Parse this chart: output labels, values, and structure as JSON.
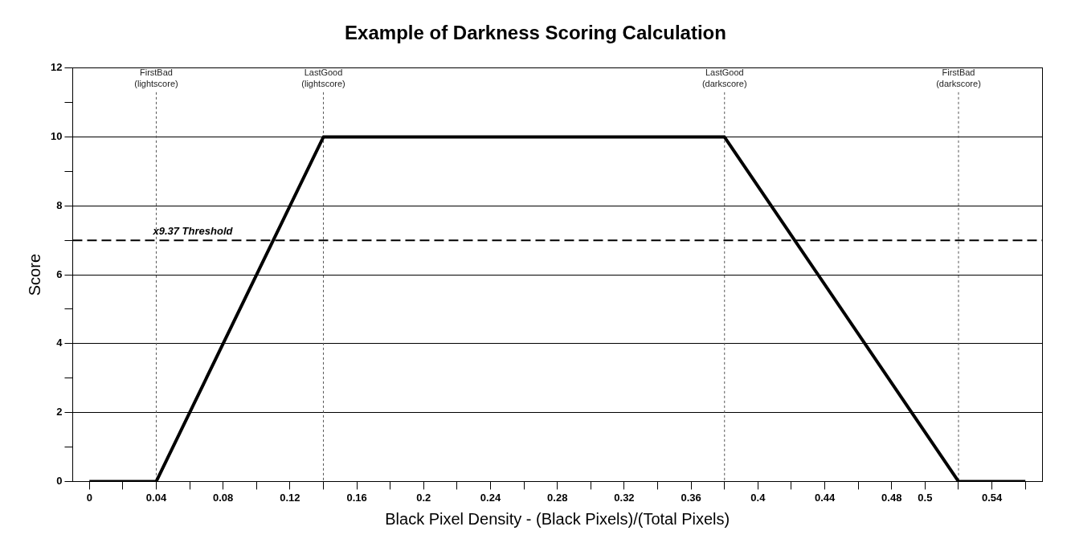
{
  "chart_data": {
    "type": "line",
    "title": "Example of Darkness Scoring Calculation",
    "xlabel": "Black Pixel Density - (Black Pixels)/(Total Pixels)",
    "ylabel": "Score",
    "x": [
      0,
      0.04,
      0.14,
      0.38,
      0.52,
      0.56
    ],
    "series": [
      {
        "color": "#000000",
        "values": [
          0,
          0,
          10,
          10,
          0,
          0
        ]
      }
    ],
    "xlim": [
      -0.01,
      0.57
    ],
    "xticks": [
      0,
      {
        "value": 0.02,
        "label": null
      },
      0.04,
      {
        "value": 0.06,
        "label": null
      },
      0.08,
      {
        "value": 0.1,
        "label": null
      },
      0.12,
      {
        "value": 0.14,
        "label": null
      },
      0.16,
      {
        "value": 0.18,
        "label": null
      },
      0.2,
      {
        "value": 0.22,
        "label": null
      },
      0.24,
      {
        "value": 0.26,
        "label": null
      },
      0.28,
      {
        "value": 0.3,
        "label": null
      },
      0.32,
      {
        "value": 0.34,
        "label": null
      },
      0.36,
      {
        "value": 0.38,
        "label": null
      },
      0.4,
      {
        "value": 0.42,
        "label": null
      },
      0.44,
      {
        "value": 0.46,
        "label": null
      },
      0.48,
      0.5,
      {
        "value": 0.52,
        "label": null
      },
      0.54,
      {
        "value": 0.56,
        "label": null
      }
    ],
    "ylim": [
      0,
      12
    ],
    "yticks": [
      0,
      {
        "value": 1,
        "label": null
      },
      2,
      {
        "value": 3,
        "label": null
      },
      4,
      {
        "value": 5,
        "label": null
      },
      6,
      {
        "value": 7,
        "label": null
      },
      8,
      {
        "value": 9,
        "label": null
      },
      10,
      {
        "value": 11,
        "label": null
      },
      12
    ],
    "grid": "y",
    "marker": "none",
    "line_style": "solid",
    "legend": false,
    "ref_lines": [
      {
        "axis": "x",
        "value": 0.04,
        "label": "FirstBad\n(lightscore)",
        "line_style": "dotted",
        "color": "#555555"
      },
      {
        "axis": "x",
        "value": 0.14,
        "label": "LastGood\n(lightscore)",
        "line_style": "dotted",
        "color": "#555555"
      },
      {
        "axis": "x",
        "value": 0.38,
        "label": "LastGood\n(darkscore)",
        "line_style": "dotted",
        "color": "#555555"
      },
      {
        "axis": "x",
        "value": 0.52,
        "label": "FirstBad\n(darkscore)",
        "line_style": "dotted",
        "color": "#555555"
      },
      {
        "axis": "y",
        "value": 7,
        "label": "x9.37 Threshold",
        "line_style": "dashed",
        "color": "#000000"
      }
    ]
  }
}
